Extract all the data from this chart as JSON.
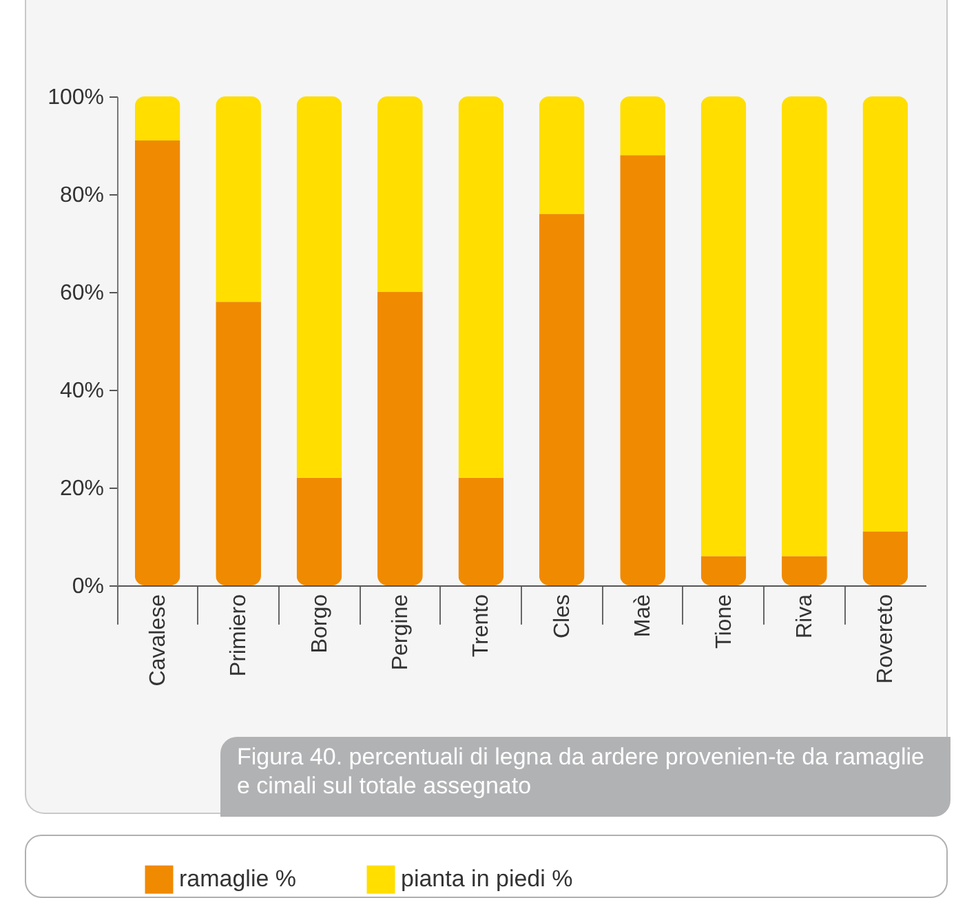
{
  "chart_data": {
    "type": "bar",
    "stacked": true,
    "categories": [
      "Cavalese",
      "Primiero",
      "Borgo",
      "Pergine",
      "Trento",
      "Cles",
      "Maè",
      "Tione",
      "Riva",
      "Rovereto"
    ],
    "series": [
      {
        "name": "ramaglie %",
        "color": "#f08a00",
        "values": [
          91,
          58,
          22,
          60,
          22,
          76,
          88,
          6,
          6,
          11
        ]
      },
      {
        "name": "pianta in piedi %",
        "color": "#ffde00",
        "values": [
          9,
          42,
          78,
          40,
          78,
          24,
          12,
          94,
          94,
          89
        ]
      }
    ],
    "ylim": [
      0,
      100
    ],
    "yticks": [
      {
        "value": 0,
        "label": "0%"
      },
      {
        "value": 20,
        "label": "20%"
      },
      {
        "value": 40,
        "label": "40%"
      },
      {
        "value": 60,
        "label": "60%"
      },
      {
        "value": 80,
        "label": "80%"
      },
      {
        "value": 100,
        "label": "100%"
      }
    ],
    "grid": false,
    "legend": "bottom",
    "annotations": [
      "Figura 40. percentuali di legna da ardere provenien-te da ramaglie e cimali sul totale assegnato"
    ]
  }
}
